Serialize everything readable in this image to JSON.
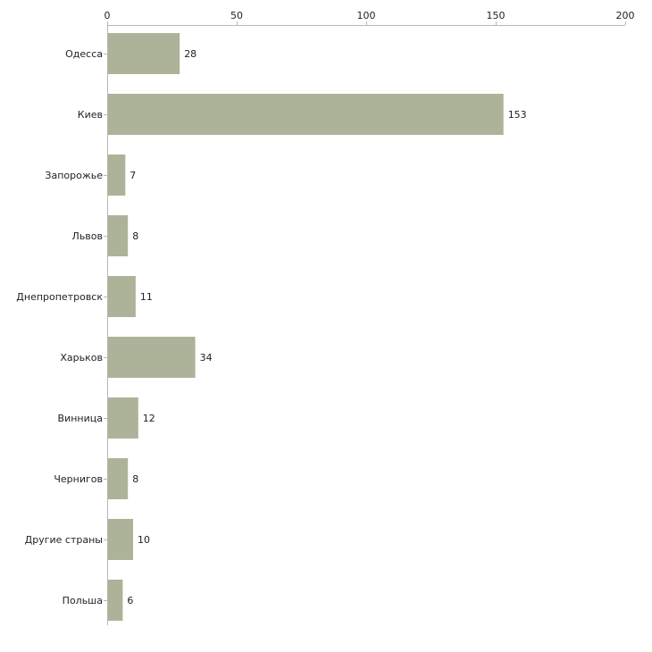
{
  "chart_data": {
    "type": "bar",
    "orientation": "horizontal",
    "categories": [
      "Одесса",
      "Киев",
      "Запорожье",
      "Львов",
      "Днепропетровск",
      "Харьков",
      "Винница",
      "Чернигов",
      "Другие страны",
      "Польша"
    ],
    "values": [
      28,
      153,
      7,
      8,
      11,
      34,
      12,
      8,
      10,
      6
    ],
    "data_labels": [
      "28",
      "153",
      "7",
      "8",
      "11",
      "34",
      "12",
      "8",
      "10",
      "6"
    ],
    "xlim": [
      0,
      200
    ],
    "x_ticks": [
      0,
      50,
      100,
      150,
      200
    ],
    "x_tick_labels": [
      "0",
      "50",
      "100",
      "150",
      "200"
    ],
    "x_axis_position": "top",
    "grid": false,
    "legend": "none",
    "colors": {
      "bar": "#adb398",
      "axis": "#b7b7b7",
      "text": "#222222"
    }
  }
}
